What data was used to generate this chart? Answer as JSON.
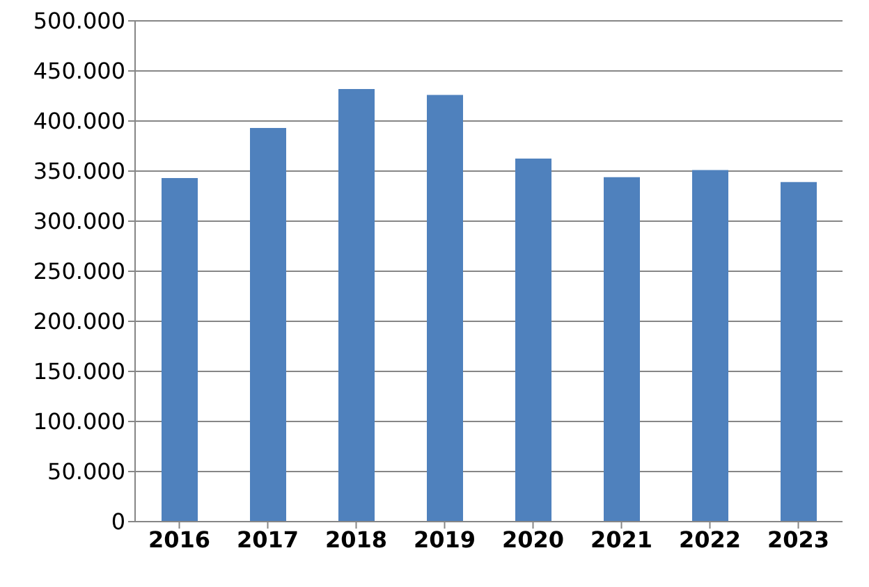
{
  "chart_data": {
    "type": "bar",
    "categories": [
      "2016",
      "2017",
      "2018",
      "2019",
      "2020",
      "2021",
      "2022",
      "2023"
    ],
    "values": [
      343000,
      393000,
      432000,
      426000,
      362500,
      344000,
      351000,
      339000
    ],
    "color": "#4f81bd",
    "ylim": [
      0,
      500000
    ],
    "yticks": [
      {
        "value": 0,
        "label": "0"
      },
      {
        "value": 50000,
        "label": "50.000"
      },
      {
        "value": 100000,
        "label": "100.000"
      },
      {
        "value": 150000,
        "label": "150.000"
      },
      {
        "value": 200000,
        "label": "200.000"
      },
      {
        "value": 250000,
        "label": "250.000"
      },
      {
        "value": 300000,
        "label": "300.000"
      },
      {
        "value": 350000,
        "label": "350.000"
      },
      {
        "value": 400000,
        "label": "400.000"
      },
      {
        "value": 450000,
        "label": "450.000"
      },
      {
        "value": 500000,
        "label": "500.000"
      }
    ],
    "grid": "y"
  }
}
